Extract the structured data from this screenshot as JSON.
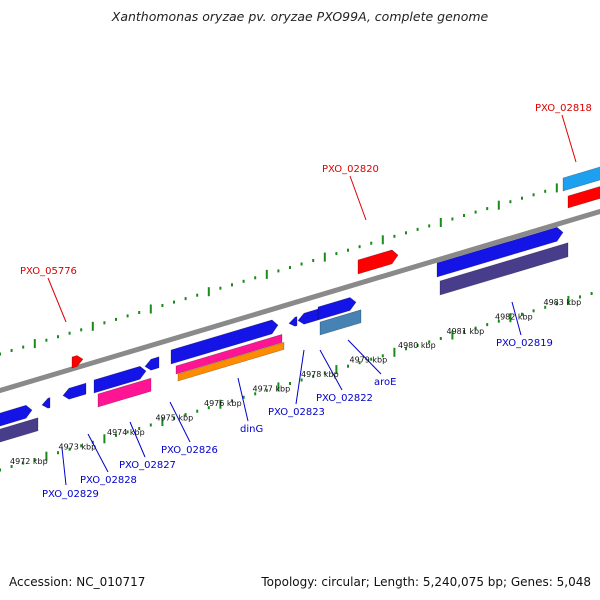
{
  "title": "Xanthomonas oryzae pv. oryzae PXO99A, complete genome",
  "footer": {
    "accession": "Accession: NC_010717",
    "summary": "Topology: circular; Length: 5,240,075 bp; Genes: 5,048"
  },
  "colors": {
    "backbone": "#8a8a8a",
    "tick": "#1a8a1a",
    "gene_blue": "#1414e6",
    "gene_red": "#ff0000",
    "gene_cyan": "#1ea0f0",
    "gene_pink": "#ff1493",
    "gene_orange": "#ff8c00",
    "gene_slate": "#4682b4",
    "gene_purple": "#483d8b",
    "label_red": "#dd0000",
    "label_blue": "#0000cc"
  },
  "axis_labels": [
    "4972 kbp",
    "4973 kbp",
    "4974 kbp",
    "4975 kbp",
    "4976 kbp",
    "4977 kbp",
    "4978 kbp",
    "4979 kbp",
    "4980 kbp",
    "4981 kbp",
    "4982 kbp",
    "4983 kbp"
  ],
  "gene_labels": [
    {
      "text": "PXO_05776",
      "color": "red"
    },
    {
      "text": "PXO_02820",
      "color": "red"
    },
    {
      "text": "PXO_02818",
      "color": "red"
    },
    {
      "text": "PXO_02829",
      "color": "blue"
    },
    {
      "text": "PXO_02828",
      "color": "blue"
    },
    {
      "text": "PXO_02827",
      "color": "blue"
    },
    {
      "text": "PXO_02826",
      "color": "blue"
    },
    {
      "text": "dinG",
      "color": "blue"
    },
    {
      "text": "PXO_02823",
      "color": "blue"
    },
    {
      "text": "PXO_02822",
      "color": "blue"
    },
    {
      "text": "aroE",
      "color": "blue"
    },
    {
      "text": "PXO_02819",
      "color": "blue"
    }
  ]
}
